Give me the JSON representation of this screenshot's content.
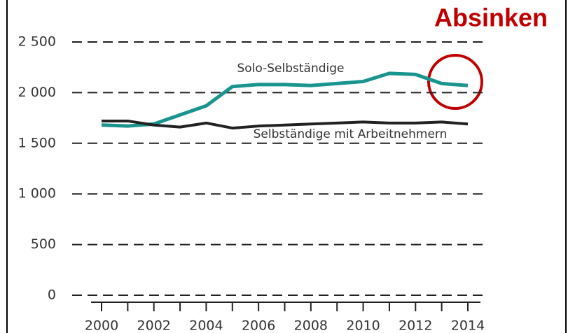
{
  "chart_data": {
    "type": "line",
    "annotations": [
      "Absinken"
    ],
    "x": [
      2000,
      2001,
      2002,
      2003,
      2004,
      2005,
      2006,
      2007,
      2008,
      2009,
      2010,
      2011,
      2012,
      2013,
      2014
    ],
    "series": [
      {
        "name": "Solo-Selbständige",
        "color": "#1a948e",
        "values": [
          1680,
          1670,
          1690,
          1780,
          1870,
          2060,
          2080,
          2080,
          2070,
          2090,
          2110,
          2190,
          2180,
          2090,
          2070
        ]
      },
      {
        "name": "Selbständige mit Arbeitnehmern",
        "color": "#222222",
        "values": [
          1720,
          1720,
          1680,
          1660,
          1700,
          1650,
          1670,
          1680,
          1690,
          1700,
          1710,
          1700,
          1700,
          1710,
          1690
        ]
      }
    ],
    "xlim": [
      2000,
      2014
    ],
    "xticks": [
      2000,
      2002,
      2004,
      2006,
      2008,
      2010,
      2012,
      2014
    ],
    "ylim": [
      0,
      2500
    ],
    "yticks": [
      0,
      500,
      {
        "value": 1000,
        "label": "1 000"
      },
      {
        "value": 1500,
        "label": "1 500"
      },
      {
        "value": 2000,
        "label": "2 000"
      },
      {
        "value": 2500,
        "label": "2 500"
      }
    ],
    "grid": true
  }
}
